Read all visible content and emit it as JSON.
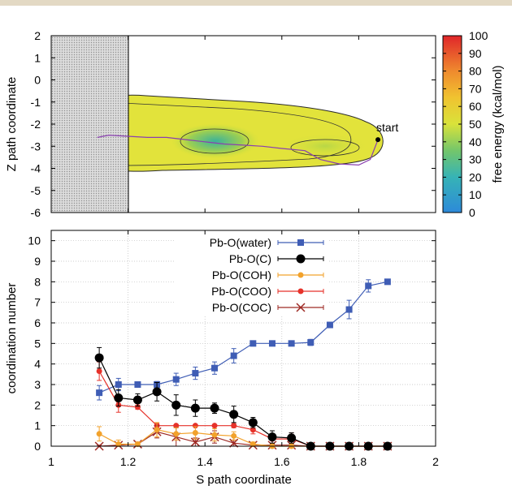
{
  "colors": {
    "water": "#3f5db5",
    "c": "#000000",
    "coh": "#f2a22c",
    "coo": "#e6322a",
    "coc": "#9e2a24",
    "path": "#8a3fb0"
  },
  "chart_data": [
    {
      "type": "heatmap",
      "title": "",
      "xlabel": "",
      "ylabel": "Z path coordinate",
      "xlim": [
        1,
        2
      ],
      "ylim": [
        -6,
        2
      ],
      "yticks": [
        "2",
        "1",
        "0",
        "-1",
        "-2",
        "-3",
        "-4",
        "-5",
        "-6"
      ],
      "colorbar": {
        "label": "free energy (kcal/mol)",
        "range": [
          0,
          100
        ],
        "ticks": [
          "100",
          "90",
          "80",
          "70",
          "60",
          "50",
          "40",
          "30",
          "20",
          "10",
          "0"
        ]
      },
      "excluded_region": {
        "x": [
          1.0,
          1.2
        ],
        "pattern": "dotted-grey"
      },
      "minima": [
        {
          "x": 1.12,
          "z": -2.6
        },
        {
          "x": 1.43,
          "z": -3.0
        },
        {
          "x": 1.72,
          "z": -3.2
        }
      ],
      "annotation": {
        "text": "start",
        "x": 1.85,
        "z": -2.7
      },
      "path": [
        [
          1.85,
          -2.7
        ],
        [
          1.83,
          -3.6
        ],
        [
          1.8,
          -3.85
        ],
        [
          1.75,
          -3.8
        ],
        [
          1.7,
          -3.6
        ],
        [
          1.66,
          -3.2
        ],
        [
          1.6,
          -3.1
        ],
        [
          1.55,
          -3.0
        ],
        [
          1.5,
          -2.95
        ],
        [
          1.45,
          -2.9
        ],
        [
          1.4,
          -2.8
        ],
        [
          1.35,
          -2.7
        ],
        [
          1.3,
          -2.6
        ],
        [
          1.25,
          -2.6
        ],
        [
          1.2,
          -2.55
        ],
        [
          1.15,
          -2.5
        ],
        [
          1.12,
          -2.6
        ]
      ]
    },
    {
      "type": "line",
      "title": "",
      "xlabel": "S path coordinate",
      "ylabel": "coordination number",
      "xlim": [
        1,
        2
      ],
      "ylim": [
        0,
        10.5
      ],
      "xticks": [
        "1",
        "1.2",
        "1.4",
        "1.6",
        "1.8",
        "2"
      ],
      "yticks": [
        "10",
        "9",
        "8",
        "7",
        "6",
        "5",
        "4",
        "3",
        "2",
        "1",
        "0"
      ],
      "grid": true,
      "legend_position": "top-center",
      "x": [
        1.125,
        1.175,
        1.225,
        1.275,
        1.325,
        1.375,
        1.425,
        1.475,
        1.525,
        1.575,
        1.625,
        1.675,
        1.725,
        1.775,
        1.825,
        1.875
      ],
      "series": [
        {
          "name": "Pb-O(water)",
          "key": "water",
          "marker": "square",
          "values": [
            2.6,
            3.0,
            3.0,
            3.0,
            3.25,
            3.55,
            3.8,
            4.4,
            5.0,
            5.0,
            5.0,
            5.05,
            5.9,
            6.65,
            7.8,
            8.0
          ],
          "errors": [
            0.35,
            0.3,
            0.1,
            0.15,
            0.3,
            0.3,
            0.3,
            0.35,
            0.1,
            0.05,
            0.1,
            0.15,
            0.1,
            0.45,
            0.3,
            0.05
          ]
        },
        {
          "name": "Pb-O(C)",
          "key": "c",
          "marker": "circle",
          "values": [
            4.3,
            2.35,
            2.25,
            2.65,
            2.0,
            1.85,
            1.85,
            1.55,
            1.15,
            0.45,
            0.4,
            0.0,
            0.0,
            0.0,
            0.0,
            0.0
          ],
          "errors": [
            0.5,
            0.4,
            0.3,
            0.45,
            0.5,
            0.4,
            0.25,
            0.4,
            0.25,
            0.3,
            0.25,
            0.05,
            0.0,
            0.0,
            0.0,
            0.0
          ]
        },
        {
          "name": "Pb-O(COH)",
          "key": "coh",
          "marker": "dot",
          "values": [
            0.6,
            0.1,
            0.1,
            0.8,
            0.6,
            0.65,
            0.55,
            0.5,
            0.1,
            0.0,
            0.0,
            0.0,
            0.0,
            0.0,
            0.0,
            0.0
          ],
          "errors": [
            0.35,
            0.2,
            0.1,
            0.35,
            0.3,
            0.3,
            0.3,
            0.2,
            0.1,
            0.05,
            0.0,
            0.0,
            0.0,
            0.0,
            0.0,
            0.0
          ]
        },
        {
          "name": "Pb-O(COO)",
          "key": "coo",
          "marker": "dot",
          "values": [
            3.65,
            2.0,
            1.9,
            1.0,
            1.0,
            1.0,
            1.0,
            1.0,
            0.8,
            0.35,
            0.35,
            0.0,
            0.0,
            0.0,
            0.0,
            0.0
          ],
          "errors": [
            0.45,
            0.35,
            0.1,
            0.1,
            0.05,
            0.05,
            0.05,
            0.1,
            0.2,
            0.25,
            0.3,
            0.05,
            0.0,
            0.0,
            0.0,
            0.0
          ]
        },
        {
          "name": "Pb-O(COC)",
          "key": "coc",
          "marker": "cross",
          "values": [
            0.0,
            0.05,
            0.1,
            0.7,
            0.45,
            0.2,
            0.45,
            0.15,
            0.05,
            0.05,
            0.05,
            0.0,
            0.0,
            0.0,
            0.0,
            0.0
          ],
          "errors": [
            0.05,
            0.1,
            0.1,
            0.3,
            0.45,
            0.2,
            0.3,
            0.15,
            0.05,
            0.05,
            0.05,
            0.0,
            0.0,
            0.0,
            0.0,
            0.0
          ]
        }
      ]
    }
  ]
}
